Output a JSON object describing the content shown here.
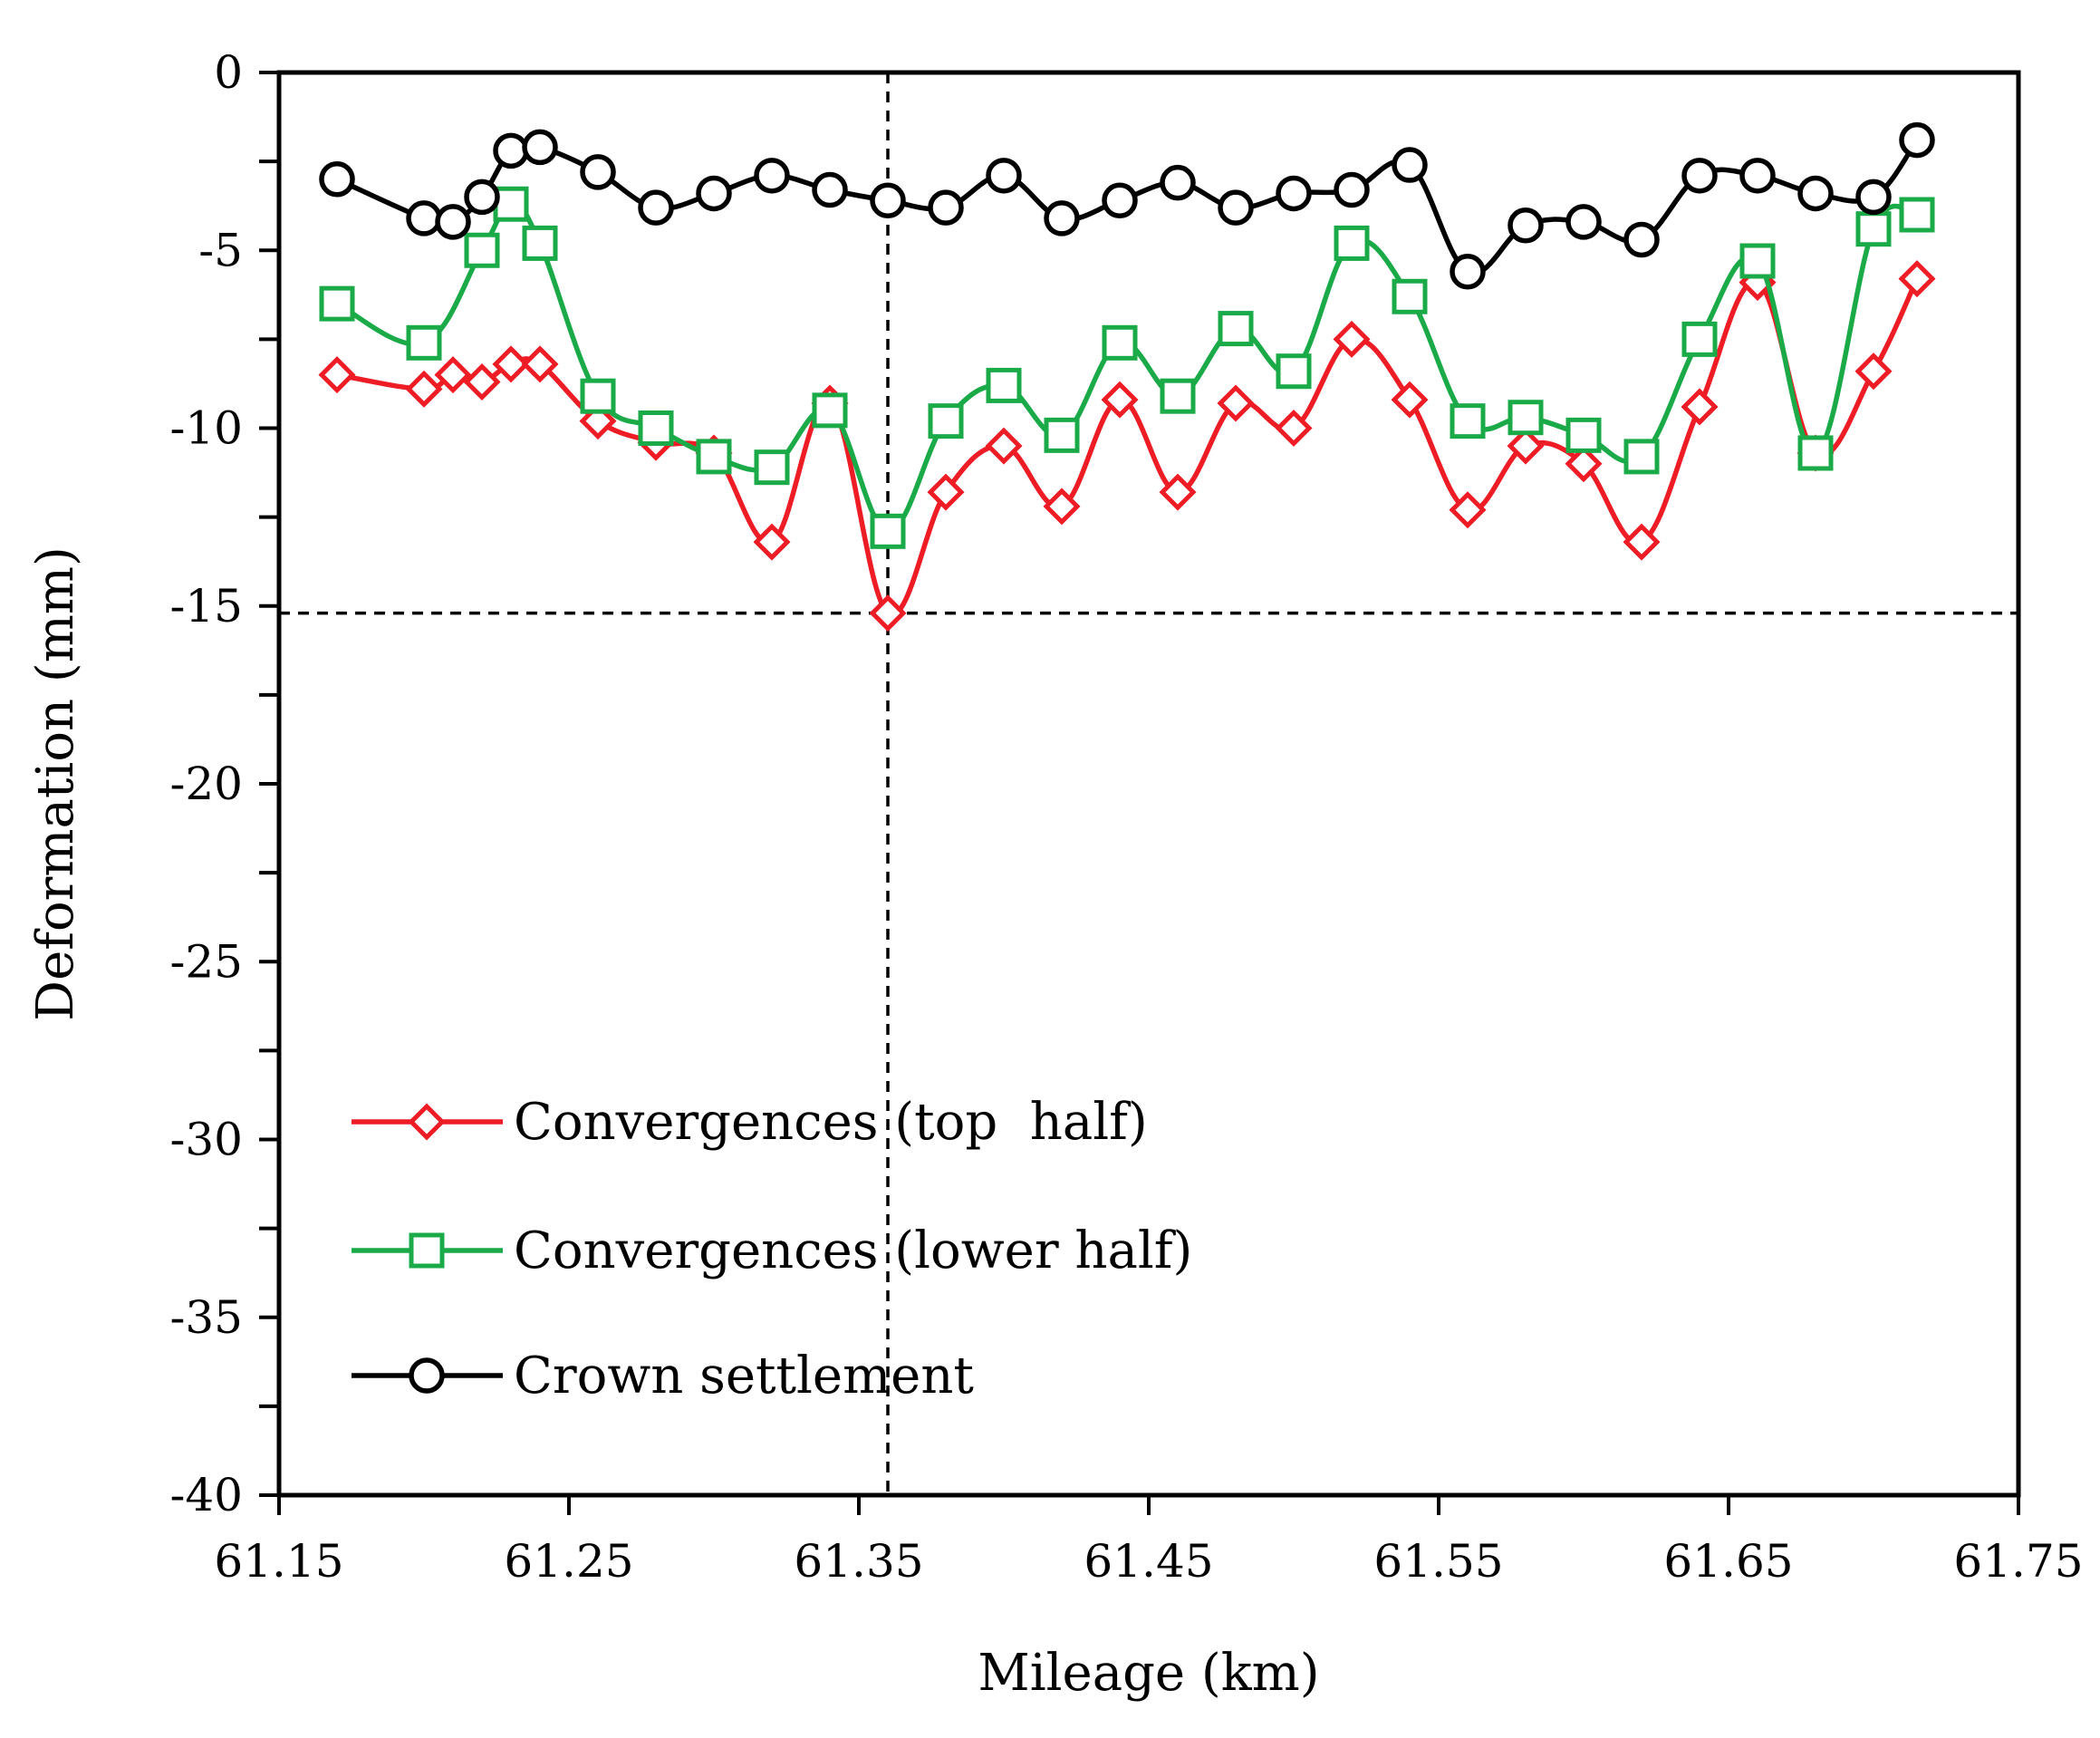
{
  "chart_data": {
    "type": "line",
    "title": "",
    "xlabel": "Mileage (km)",
    "ylabel": "Deformation (mm)",
    "xlim": [
      61.15,
      61.75
    ],
    "ylim": [
      -40,
      0
    ],
    "xticks": [
      61.15,
      61.25,
      61.35,
      61.45,
      61.55,
      61.65,
      61.75
    ],
    "xtick_labels": [
      "61.15",
      "61.25",
      "61.35",
      "61.45",
      "61.55",
      "61.65",
      "61.75"
    ],
    "yticks": [
      0,
      -5,
      -10,
      -15,
      -20,
      -25,
      -30,
      -35,
      -40
    ],
    "ytick_labels": [
      "0",
      "-5",
      "-10",
      "-15",
      "-20",
      "-25",
      "-30",
      "-35",
      "-40"
    ],
    "grid": false,
    "legend_position": "bottom-left",
    "reference_lines": {
      "x": 61.36,
      "y": -15.2
    },
    "series": [
      {
        "name": "Convergences (top  half)",
        "color": "#ee1c25",
        "marker": "diamond",
        "x": [
          61.17,
          61.2,
          61.21,
          61.22,
          61.23,
          61.24,
          61.26,
          61.28,
          61.3,
          61.32,
          61.34,
          61.36,
          61.38,
          61.4,
          61.42,
          61.44,
          61.46,
          61.48,
          61.5,
          61.52,
          61.54,
          61.56,
          61.58,
          61.6,
          61.62,
          61.64,
          61.66,
          61.68,
          61.7,
          61.715
        ],
        "y": [
          -8.5,
          -8.9,
          -8.5,
          -8.7,
          -8.2,
          -8.2,
          -9.8,
          -10.4,
          -10.7,
          -13.2,
          -9.3,
          -15.2,
          -11.8,
          -10.5,
          -12.2,
          -9.2,
          -11.8,
          -9.3,
          -10.0,
          -7.5,
          -9.2,
          -12.3,
          -10.5,
          -11.0,
          -13.2,
          -9.4,
          -5.9,
          -10.7,
          -8.4,
          -5.8
        ]
      },
      {
        "name": "Convergences (lower half)",
        "color": "#1aaa48",
        "marker": "square",
        "x": [
          61.17,
          61.2,
          61.22,
          61.23,
          61.24,
          61.26,
          61.28,
          61.3,
          61.32,
          61.34,
          61.36,
          61.38,
          61.4,
          61.42,
          61.44,
          61.46,
          61.48,
          61.5,
          61.52,
          61.54,
          61.56,
          61.58,
          61.6,
          61.62,
          61.64,
          61.66,
          61.68,
          61.7,
          61.715
        ],
        "y": [
          -6.5,
          -7.6,
          -5.0,
          -3.7,
          -4.8,
          -9.1,
          -10.0,
          -10.8,
          -11.1,
          -9.5,
          -12.9,
          -9.8,
          -8.8,
          -10.2,
          -7.6,
          -9.1,
          -7.2,
          -8.4,
          -4.8,
          -6.3,
          -9.8,
          -9.7,
          -10.2,
          -10.8,
          -7.5,
          -5.3,
          -10.7,
          -4.4,
          -4.0
        ]
      },
      {
        "name": "Crown settlement",
        "color": "#000000",
        "marker": "circle",
        "x": [
          61.17,
          61.2,
          61.21,
          61.22,
          61.23,
          61.24,
          61.26,
          61.28,
          61.3,
          61.32,
          61.34,
          61.36,
          61.38,
          61.4,
          61.42,
          61.44,
          61.46,
          61.48,
          61.5,
          61.52,
          61.54,
          61.56,
          61.58,
          61.6,
          61.62,
          61.64,
          61.66,
          61.68,
          61.7,
          61.715
        ],
        "y": [
          -3.0,
          -4.1,
          -4.2,
          -3.5,
          -2.2,
          -2.1,
          -2.8,
          -3.8,
          -3.4,
          -2.9,
          -3.3,
          -3.6,
          -3.8,
          -2.9,
          -4.1,
          -3.6,
          -3.1,
          -3.8,
          -3.4,
          -3.3,
          -2.6,
          -5.6,
          -4.3,
          -4.2,
          -4.7,
          -2.9,
          -2.9,
          -3.4,
          -3.5,
          -1.9
        ]
      }
    ]
  }
}
